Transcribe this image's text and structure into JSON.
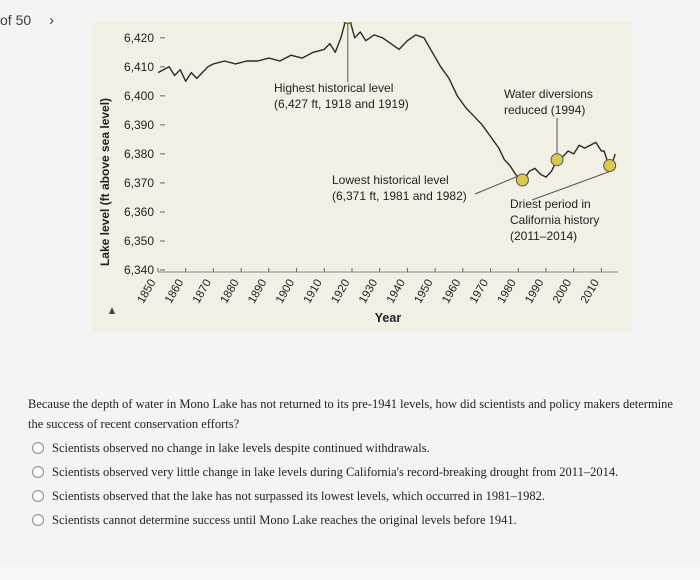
{
  "nav": {
    "page_count": "of 50",
    "next_icon": "›"
  },
  "chart_data": {
    "type": "line",
    "xlabel": "Year",
    "ylabel": "Lake level (ft above sea level)",
    "x_ticks": [
      "1850",
      "1860",
      "1870",
      "1880",
      "1890",
      "1900",
      "1910",
      "1920",
      "1930",
      "1940",
      "1950",
      "1960",
      "1970",
      "1980",
      "1990",
      "2000",
      "2010"
    ],
    "y_ticks": [
      "6,340",
      "6,350",
      "6,360",
      "6,370",
      "6,380",
      "6,390",
      "6,400",
      "6,410",
      "6,420"
    ],
    "ylim": [
      6340,
      6422
    ],
    "xlim": [
      1850,
      2016
    ],
    "series": [
      {
        "x": [
          1850,
          1852,
          1854,
          1856,
          1858,
          1860,
          1862,
          1864,
          1866,
          1868,
          1870,
          1874,
          1878,
          1882,
          1886,
          1890,
          1894,
          1898,
          1902,
          1906,
          1910,
          1912,
          1914,
          1916,
          1918,
          1919,
          1921,
          1923,
          1925,
          1928,
          1931,
          1934,
          1937,
          1940,
          1943,
          1946,
          1949,
          1952,
          1955,
          1958,
          1961,
          1964,
          1967,
          1970,
          1973,
          1975,
          1977,
          1979,
          1981,
          1982,
          1984,
          1986,
          1988,
          1990,
          1992,
          1994,
          1996,
          1998,
          2000,
          2002,
          2004,
          2006,
          2008,
          2010,
          2011,
          2012,
          2013,
          2014,
          2015
        ],
        "y": [
          6408,
          6409,
          6410,
          6407,
          6409,
          6405,
          6408,
          6406,
          6408,
          6410,
          6411,
          6412,
          6411,
          6412,
          6412,
          6413,
          6412,
          6414,
          6413,
          6415,
          6416,
          6418,
          6415,
          6420,
          6427,
          6427,
          6420,
          6422,
          6419,
          6421,
          6420,
          6418,
          6416,
          6419,
          6421,
          6420,
          6415,
          6410,
          6406,
          6400,
          6396,
          6393,
          6390,
          6386,
          6382,
          6378,
          6376,
          6373,
          6371,
          6371,
          6374,
          6375,
          6373,
          6372,
          6374,
          6378,
          6379,
          6381,
          6380,
          6383,
          6382,
          6383,
          6384,
          6381,
          6381,
          6378,
          6376,
          6377,
          6380
        ]
      }
    ],
    "annotations": [
      {
        "label": "Highest historical level",
        "detail": "(6,427 ft, 1918 and 1919)"
      },
      {
        "label": "Lowest historical level",
        "detail": "(6,371 ft, 1981 and 1982)"
      },
      {
        "label": "Water diversions",
        "detail": "reduced (1994)"
      },
      {
        "label": "Driest period in",
        "detail": "California history",
        "detail2": "(2011–2014)"
      }
    ],
    "highlight_years": [
      1918.5,
      1981.5,
      1994,
      2013
    ],
    "highlight_color": "#d9c84a",
    "grid": false
  },
  "question": {
    "stem": "Because the depth of water in Mono Lake has not returned to its pre-1941 levels, how did scientists and policy makers determine the success of recent conservation efforts?",
    "options": [
      "Scientists observed no change in lake levels despite continued withdrawals.",
      "Scientists observed very little change in lake levels during California's record-breaking drought from 2011–2014.",
      "Scientists observed that the lake has not surpassed its lowest levels, which occurred in 1981–1982.",
      "Scientists cannot determine success until Mono Lake reaches the original levels before 1941."
    ]
  }
}
